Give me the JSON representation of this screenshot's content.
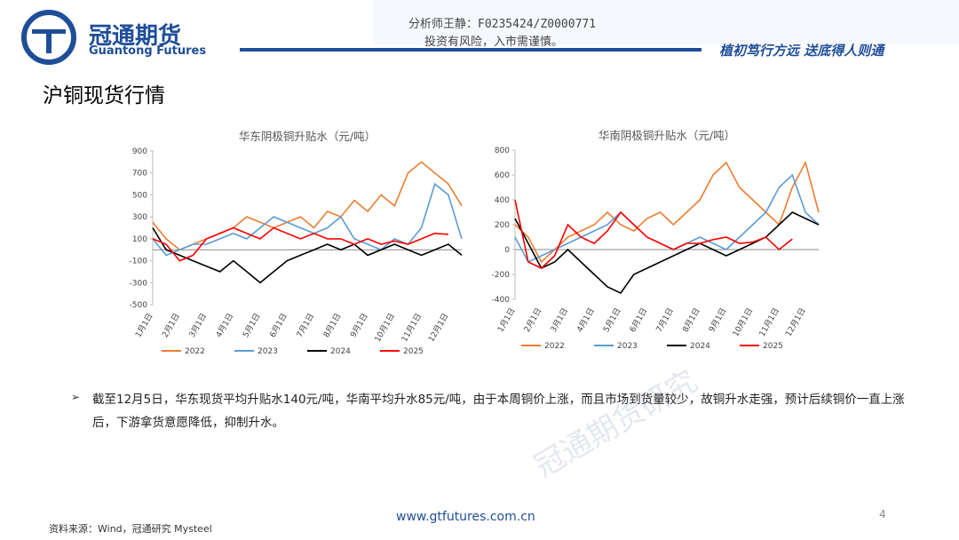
{
  "header": {
    "brand": "冠通期货",
    "brand_en": "Guantong Futures",
    "analyst": "分析师王静：F0235424/Z0000771",
    "risk": "投资有风险，入市需谨慎。",
    "slogan": "植初笃行方远  送底得人则通"
  },
  "title": "沪铜现货行情",
  "watermark": "冠通期货研究",
  "chart_data": [
    {
      "type": "line",
      "title": "华东阴极铜升贴水（元/吨）",
      "categories": [
        "1月1日",
        null,
        "2月1日",
        null,
        "3月1日",
        null,
        "4月1日",
        null,
        "5月1日",
        null,
        "6月1日",
        null,
        "7月1日",
        null,
        "8月1日",
        null,
        "9月1日",
        null,
        "10月1日",
        null,
        "11月1日",
        null,
        "12月1日",
        null
      ],
      "series": [
        {
          "name": "2022",
          "color": "#ed7d31",
          "values": [
            250,
            100,
            0,
            50,
            100,
            150,
            200,
            300,
            250,
            200,
            250,
            300,
            200,
            350,
            300,
            450,
            350,
            500,
            400,
            700,
            800,
            700,
            600,
            400
          ]
        },
        {
          "name": "2023",
          "color": "#5b9bd5",
          "values": [
            100,
            -50,
            0,
            50,
            50,
            100,
            150,
            100,
            200,
            300,
            250,
            200,
            150,
            200,
            300,
            100,
            50,
            0,
            100,
            50,
            200,
            600,
            500,
            100
          ]
        },
        {
          "name": "2024",
          "color": "#000000",
          "values": [
            200,
            0,
            -50,
            -100,
            -150,
            -200,
            -100,
            -200,
            -300,
            -200,
            -100,
            -50,
            0,
            50,
            0,
            50,
            -50,
            0,
            50,
            0,
            -50,
            0,
            50,
            -50
          ]
        },
        {
          "name": "2025",
          "color": "#ff0000",
          "values": [
            100,
            50,
            -100,
            -50,
            100,
            150,
            200,
            150,
            100,
            200,
            150,
            100,
            150,
            100,
            100,
            50,
            100,
            50,
            80,
            50,
            100,
            150,
            140,
            null
          ]
        }
      ],
      "ylim": [
        -500,
        900
      ],
      "yticks": [
        -500,
        -300,
        -100,
        100,
        300,
        500,
        700,
        900
      ],
      "legend": "bottom"
    },
    {
      "type": "line",
      "title": "华南阴极铜升贴水（元/吨）",
      "categories": [
        "1月1日",
        null,
        "2月1日",
        null,
        "3月1日",
        null,
        "4月1日",
        null,
        "5月1日",
        null,
        "6月1日",
        null,
        "7月1日",
        null,
        "8月1日",
        null,
        "9月1日",
        null,
        "10月1日",
        null,
        "11月1日",
        null,
        "12月1日",
        null
      ],
      "series": [
        {
          "name": "2022",
          "color": "#ed7d31",
          "values": [
            200,
            100,
            -100,
            0,
            100,
            150,
            200,
            300,
            200,
            150,
            250,
            300,
            200,
            300,
            400,
            600,
            700,
            500,
            400,
            300,
            200,
            500,
            700,
            300
          ]
        },
        {
          "name": "2023",
          "color": "#5b9bd5",
          "values": [
            100,
            -100,
            -50,
            0,
            50,
            100,
            150,
            200,
            300,
            200,
            100,
            50,
            0,
            50,
            100,
            50,
            0,
            100,
            200,
            300,
            500,
            600,
            300,
            200
          ]
        },
        {
          "name": "2024",
          "color": "#000000",
          "values": [
            250,
            50,
            -150,
            -100,
            0,
            -100,
            -200,
            -300,
            -350,
            -200,
            -150,
            -100,
            -50,
            0,
            50,
            0,
            -50,
            0,
            50,
            100,
            200,
            300,
            250,
            200
          ]
        },
        {
          "name": "2025",
          "color": "#ff0000",
          "values": [
            400,
            -100,
            -150,
            -50,
            200,
            100,
            50,
            150,
            300,
            200,
            100,
            50,
            0,
            50,
            50,
            80,
            100,
            50,
            60,
            100,
            0,
            85,
            null,
            null
          ]
        }
      ],
      "ylim": [
        -400,
        800
      ],
      "yticks": [
        -400,
        -200,
        0,
        200,
        400,
        600,
        800
      ],
      "legend": "bottom"
    }
  ],
  "bullet": "截至12月5日，华东现货平均升贴水140元/吨，华南平均升水85元/吨，由于本周铜价上涨，而且市场到货量较少，故铜升水走强，预计后续铜价一直上涨后，下游拿货意愿降低，抑制升水。",
  "source": "资料来源：Wind，冠通研究 Mysteel",
  "website": "www.gtfutures.com.cn",
  "page_number": "4"
}
